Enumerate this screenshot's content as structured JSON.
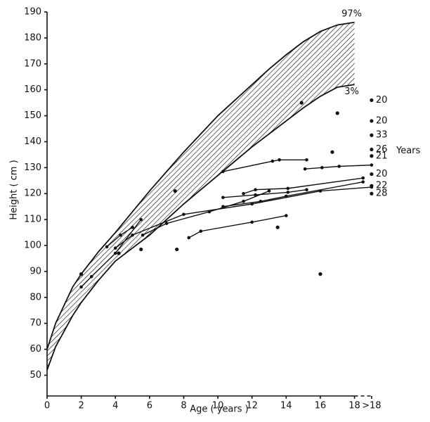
{
  "chart_data": {
    "type": "line",
    "x_label": "Age ( years )",
    "y_label": "Height ( cm )",
    "xlim": [
      0,
      19.5
    ],
    "ylim": [
      42,
      190
    ],
    "xticks": [
      0,
      2,
      4,
      6,
      8,
      10,
      12,
      14,
      16,
      18,
      {
        "value": 19,
        "label": ">18"
      }
    ],
    "yticks": [
      50,
      60,
      70,
      80,
      90,
      100,
      110,
      120,
      130,
      140,
      150,
      160,
      170,
      180,
      190
    ],
    "percentiles": [
      {
        "name": "97%",
        "x": [
          0,
          0.5,
          1,
          1.5,
          2,
          3,
          4,
          5,
          6,
          7,
          8,
          9,
          10,
          11,
          12,
          13,
          14,
          15,
          16,
          17,
          18
        ],
        "values": [
          60,
          70,
          77,
          84,
          89,
          97.5,
          105,
          113,
          121,
          128.5,
          136,
          143,
          150,
          156,
          162,
          168,
          173.5,
          178.5,
          182.5,
          185,
          186
        ]
      },
      {
        "name": "3%",
        "x": [
          0,
          0.5,
          1,
          1.5,
          2,
          3,
          4,
          5,
          6,
          7,
          8,
          9,
          10,
          11,
          12,
          13,
          14,
          15,
          16,
          17,
          18
        ],
        "values": [
          52,
          61,
          67,
          73,
          78,
          86.5,
          94,
          99,
          104,
          110,
          116,
          121.5,
          127,
          132.5,
          138,
          143,
          148,
          153,
          157.5,
          161,
          162
        ]
      }
    ],
    "series": [
      {
        "x": [
          10.3,
          13.2,
          13.6,
          15.2
        ],
        "values": [
          128.5,
          132.5,
          133,
          133
        ]
      },
      {
        "x": [
          15.1,
          16.1,
          17.1,
          19
        ],
        "values": [
          129.5,
          130,
          130.5,
          131
        ]
      },
      {
        "x": [
          10.3,
          12.2,
          14.1,
          15.2
        ],
        "values": [
          118.5,
          119.5,
          120.5,
          121.5
        ]
      },
      {
        "x": [
          11.5,
          12.2,
          14.1,
          18.5
        ],
        "values": [
          120,
          121.5,
          122,
          126
        ]
      },
      {
        "x": [
          10.3,
          12.5,
          14,
          18.5
        ],
        "values": [
          115,
          117,
          119,
          124.5
        ]
      },
      {
        "x": [
          4,
          5,
          8,
          12,
          16,
          19
        ],
        "values": [
          99,
          104,
          112,
          116,
          121,
          122.5
        ]
      },
      {
        "x": [
          5.6,
          7,
          9.5,
          11.5,
          13
        ],
        "values": [
          104,
          108.5,
          113,
          117,
          121
        ]
      },
      {
        "x": [
          8.3,
          9,
          12,
          14
        ],
        "values": [
          103,
          105.5,
          109,
          111.5
        ]
      },
      {
        "x": [
          2,
          2.6,
          4,
          5.5
        ],
        "values": [
          84,
          88,
          97,
          110
        ]
      },
      {
        "x": [
          3.5,
          4.3,
          5
        ],
        "values": [
          99.5,
          104,
          107
        ]
      }
    ],
    "points": {
      "x": [
        2,
        4.2,
        5.5,
        7.5,
        7.6,
        13.5,
        16,
        16.7,
        17,
        14.9
      ],
      "values": [
        89,
        97,
        98.5,
        121,
        98.5,
        107,
        89,
        136,
        151,
        155
      ]
    },
    "adults": {
      "x": [
        19,
        19,
        19,
        19,
        19,
        19,
        19,
        19
      ],
      "values": [
        156,
        148,
        142.5,
        137,
        134.5,
        127.5,
        123,
        120
      ],
      "labels": [
        "20",
        "20",
        "33",
        "26",
        "21",
        "20",
        "22",
        "28"
      ]
    },
    "adults_label": "Years"
  }
}
